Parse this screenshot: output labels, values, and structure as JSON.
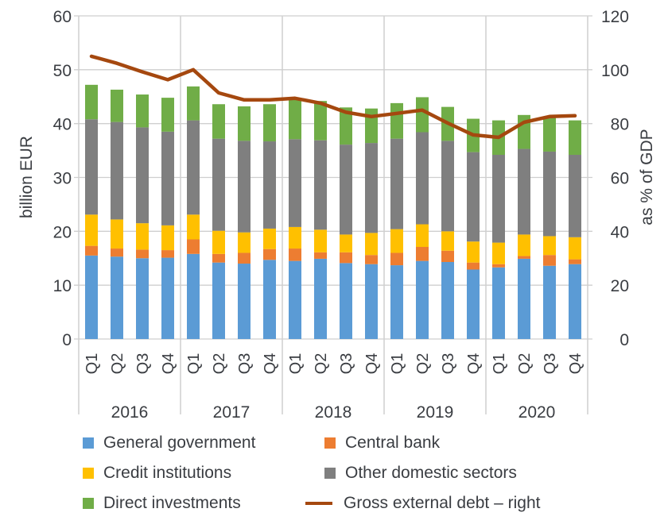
{
  "chart_data": {
    "type": "bar",
    "stacked": true,
    "title": "",
    "ylabel": "billion EUR",
    "y2label": "as % of GDP",
    "ylim": [
      0,
      60
    ],
    "y2lim": [
      0,
      120
    ],
    "yticks": [
      "0",
      "10",
      "20",
      "30",
      "40",
      "50",
      "60"
    ],
    "y2ticks": [
      "0",
      "20",
      "40",
      "60",
      "80",
      "100",
      "120"
    ],
    "grid": true,
    "legend_position": "bottom",
    "categories": [
      "Q1",
      "Q2",
      "Q3",
      "Q4",
      "Q1",
      "Q2",
      "Q3",
      "Q4",
      "Q1",
      "Q2",
      "Q3",
      "Q4",
      "Q1",
      "Q2",
      "Q3",
      "Q4",
      "Q1",
      "Q2",
      "Q3",
      "Q4"
    ],
    "groups": [
      "2016",
      "2017",
      "2018",
      "2019",
      "2020"
    ],
    "series": [
      {
        "name": "General government",
        "color": "#5b9bd5",
        "values": [
          15.5,
          15.3,
          15.0,
          15.1,
          15.8,
          14.2,
          14.0,
          14.7,
          14.5,
          14.9,
          14.1,
          13.9,
          13.7,
          14.5,
          14.3,
          12.9,
          13.3,
          14.9,
          13.6,
          13.9
        ]
      },
      {
        "name": "Central bank",
        "color": "#ed7d31",
        "values": [
          1.8,
          1.5,
          1.6,
          1.4,
          2.7,
          1.6,
          2.0,
          2.0,
          2.3,
          1.2,
          2.0,
          1.7,
          2.3,
          2.6,
          2.1,
          1.3,
          0.6,
          0.5,
          2.0,
          0.9
        ]
      },
      {
        "name": "Credit institutions",
        "color": "#ffc000",
        "values": [
          5.8,
          5.4,
          4.9,
          4.6,
          4.6,
          4.3,
          3.8,
          3.8,
          4.0,
          4.2,
          3.3,
          4.1,
          4.4,
          4.2,
          3.6,
          3.9,
          4.0,
          4.0,
          3.5,
          4.1
        ]
      },
      {
        "name": "Other domestic sectors",
        "color": "#7f7f7f",
        "values": [
          17.7,
          18.1,
          17.8,
          17.4,
          17.5,
          17.1,
          17.0,
          16.2,
          16.3,
          16.6,
          16.7,
          16.7,
          16.8,
          17.1,
          16.8,
          16.6,
          16.3,
          15.9,
          15.7,
          15.3
        ]
      },
      {
        "name": "Direct investments",
        "color": "#70ad47",
        "values": [
          6.4,
          6.0,
          6.1,
          6.3,
          6.3,
          6.4,
          6.4,
          6.9,
          7.3,
          7.3,
          6.9,
          6.4,
          6.6,
          6.5,
          6.3,
          6.2,
          6.4,
          6.3,
          6.5,
          6.4
        ]
      }
    ],
    "line_series": {
      "name": "Gross external debt – right",
      "color": "#a5480f",
      "axis": "right",
      "values": [
        105.0,
        102.4,
        99.2,
        96.3,
        100.0,
        91.4,
        88.8,
        88.8,
        89.4,
        87.6,
        84.2,
        82.6,
        83.8,
        85.0,
        80.2,
        75.8,
        74.9,
        80.5,
        82.6,
        82.9
      ]
    }
  },
  "legend": {
    "items": [
      {
        "label": "General government",
        "color": "#5b9bd5",
        "kind": "box"
      },
      {
        "label": "Central bank",
        "color": "#ed7d31",
        "kind": "box"
      },
      {
        "label": "Credit institutions",
        "color": "#ffc000",
        "kind": "box"
      },
      {
        "label": "Other domestic sectors",
        "color": "#7f7f7f",
        "kind": "box"
      },
      {
        "label": "Direct investments",
        "color": "#70ad47",
        "kind": "box"
      },
      {
        "label": "Gross external debt – right",
        "color": "#a5480f",
        "kind": "line"
      }
    ]
  }
}
